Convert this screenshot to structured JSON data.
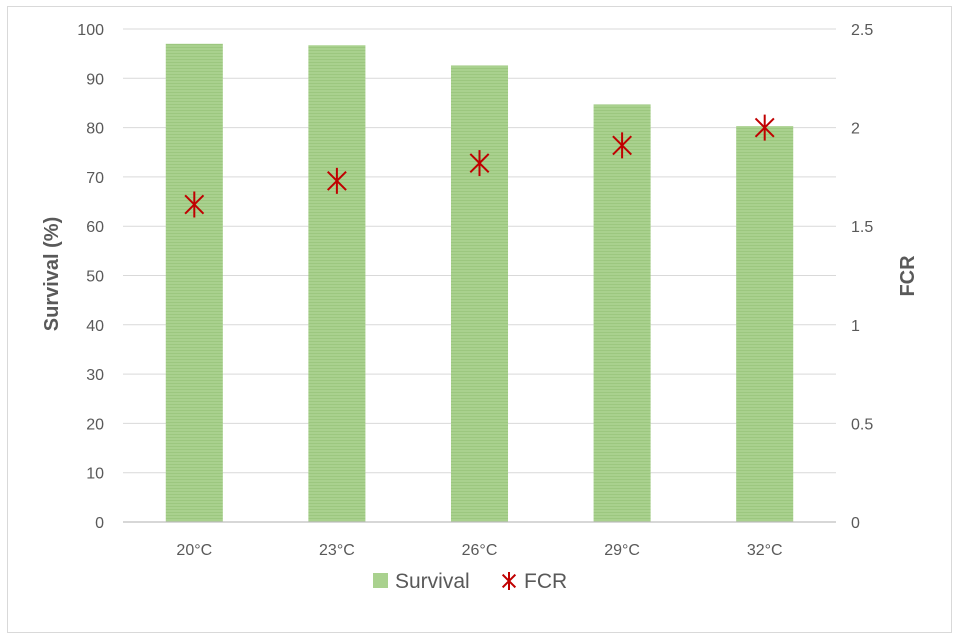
{
  "chart_data": {
    "type": "bar",
    "categories": [
      "20°C",
      "23°C",
      "26°C",
      "29°C",
      "32°C"
    ],
    "series": [
      {
        "name": "Survival",
        "type": "bar",
        "axis": "left",
        "values": [
          97.0,
          96.7,
          92.6,
          84.7,
          80.3
        ],
        "color": "#a9d18e"
      },
      {
        "name": "FCR",
        "type": "scatter",
        "marker": "star",
        "axis": "right",
        "values": [
          1.61,
          1.73,
          1.82,
          1.91,
          2.0
        ],
        "color": "#c00000"
      }
    ],
    "ylabel": "Survival (%)",
    "y2label": "FCR",
    "ylim": [
      0,
      100
    ],
    "y2lim": [
      0,
      2.5
    ],
    "yticks": [
      "0",
      "10",
      "20",
      "30",
      "40",
      "50",
      "60",
      "70",
      "80",
      "90",
      "100"
    ],
    "y2ticks": [
      "0",
      "0.5",
      "1",
      "1.5",
      "2",
      "2.5"
    ],
    "grid": true,
    "legend_position": "bottom"
  }
}
